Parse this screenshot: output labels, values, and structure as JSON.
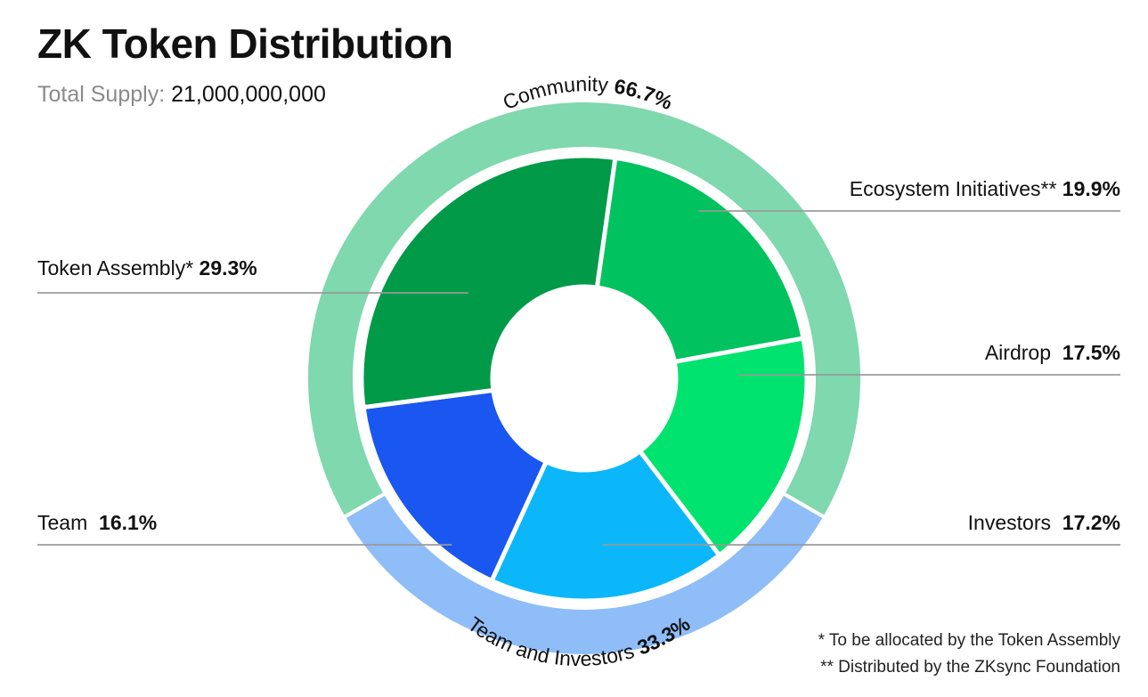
{
  "header": {
    "title": "ZK Token Distribution",
    "supply_label": "Total Supply:",
    "supply_value": "21,000,000,000"
  },
  "chart_data": {
    "type": "pie",
    "variant": "nested donut (sunburst)",
    "title": "ZK Token Distribution",
    "total_supply": 21000000000,
    "outer_ring": [
      {
        "name": "Community",
        "value": 66.7,
        "value_label": "66.7%",
        "color": "#7fd8ae"
      },
      {
        "name": "Team and Investors",
        "value": 33.3,
        "value_label": "33.3%",
        "color": "#8fbdf7"
      }
    ],
    "inner_ring": [
      {
        "name": "Ecosystem Initiatives**",
        "value": 19.9,
        "value_label": "19.9%",
        "color": "#00c25e",
        "group": "Community"
      },
      {
        "name": "Airdrop",
        "value": 17.5,
        "value_label": "17.5%",
        "color": "#00e36e",
        "group": "Community"
      },
      {
        "name": "Investors",
        "value": 17.2,
        "value_label": "17.2%",
        "color": "#0cb7f9",
        "group": "Team and Investors"
      },
      {
        "name": "Team",
        "value": 16.1,
        "value_label": "16.1%",
        "color": "#1a56f0",
        "group": "Team and Investors"
      },
      {
        "name": "Token Assembly*",
        "value": 29.3,
        "value_label": "29.3%",
        "color": "#009a48",
        "group": "Community"
      }
    ]
  },
  "footnotes": [
    "* To be allocated by the Token Assembly",
    "** Distributed by the ZKsync Foundation"
  ]
}
